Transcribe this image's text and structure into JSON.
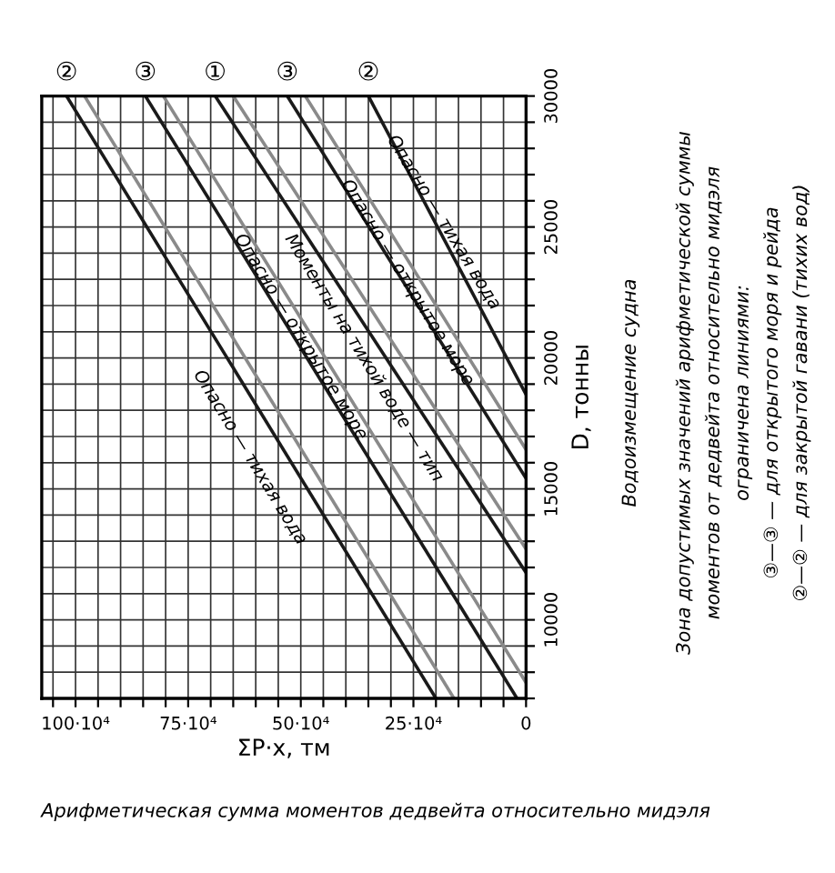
{
  "chart_data": {
    "type": "line",
    "xlabel": "ΣP·x, тм",
    "ylabel": "D, тонны",
    "xlim": [
      1075000,
      0
    ],
    "ylim": [
      7000,
      30000
    ],
    "xticks": [
      {
        "value": 0,
        "label": "0"
      },
      {
        "value": 50000,
        "label": null
      },
      {
        "value": 100000,
        "label": null
      },
      {
        "value": 150000,
        "label": null
      },
      {
        "value": 200000,
        "label": null
      },
      {
        "value": 250000,
        "label": "25·10⁴"
      },
      {
        "value": 300000,
        "label": null
      },
      {
        "value": 350000,
        "label": null
      },
      {
        "value": 400000,
        "label": null
      },
      {
        "value": 450000,
        "label": null
      },
      {
        "value": 500000,
        "label": "50·10⁴"
      },
      {
        "value": 550000,
        "label": null
      },
      {
        "value": 600000,
        "label": null
      },
      {
        "value": 650000,
        "label": null
      },
      {
        "value": 700000,
        "label": null
      },
      {
        "value": 750000,
        "label": "75·10⁴"
      },
      {
        "value": 800000,
        "label": null
      },
      {
        "value": 850000,
        "label": null
      },
      {
        "value": 900000,
        "label": null
      },
      {
        "value": 950000,
        "label": null
      },
      {
        "value": 1000000,
        "label": "100·10⁴"
      },
      {
        "value": 1050000,
        "label": null
      }
    ],
    "yticks": [
      {
        "value": 7000,
        "label": null
      },
      {
        "value": 8000,
        "label": null
      },
      {
        "value": 9000,
        "label": null
      },
      10000,
      {
        "value": 11000,
        "label": null
      },
      {
        "value": 12000,
        "label": null
      },
      {
        "value": 13000,
        "label": null
      },
      {
        "value": 14000,
        "label": null
      },
      15000,
      {
        "value": 16000,
        "label": null
      },
      {
        "value": 17000,
        "label": null
      },
      {
        "value": 18000,
        "label": null
      },
      {
        "value": 19000,
        "label": null
      },
      20000,
      {
        "value": 21000,
        "label": null
      },
      {
        "value": 22000,
        "label": null
      },
      {
        "value": 23000,
        "label": null
      },
      {
        "value": 24000,
        "label": null
      },
      25000,
      {
        "value": 26000,
        "label": null
      },
      {
        "value": 27000,
        "label": null
      },
      {
        "value": 28000,
        "label": null
      },
      {
        "value": 29000,
        "label": null
      },
      30000
    ],
    "grid": true,
    "series": [
      {
        "color": "#1a1a1a",
        "x": [
          1020000,
          200000
        ],
        "values": [
          30000,
          7000
        ]
      },
      {
        "color": "#1a1a1a",
        "x": [
          845000,
          20000
        ],
        "values": [
          30000,
          7000
        ]
      },
      {
        "color": "#1a1a1a",
        "x": [
          690000,
          0
        ],
        "values": [
          30000,
          11800
        ]
      },
      {
        "color": "#1a1a1a",
        "x": [
          530000,
          0
        ],
        "values": [
          30000,
          15400
        ]
      },
      {
        "color": "#1a1a1a",
        "x": [
          350000,
          0
        ],
        "values": [
          30000,
          18600
        ]
      },
      {
        "color": "#8a8a8a",
        "x": [
          980000,
          160000
        ],
        "values": [
          30000,
          7000
        ]
      },
      {
        "color": "#8a8a8a",
        "x": [
          805000,
          0
        ],
        "values": [
          30000,
          7600
        ]
      },
      {
        "color": "#8a8a8a",
        "x": [
          650000,
          0
        ],
        "values": [
          30000,
          12700
        ]
      },
      {
        "color": "#8a8a8a",
        "x": [
          490000,
          0
        ],
        "values": [
          30000,
          16500
        ]
      }
    ],
    "annotations": [
      "Арифметическая сумма моментов дедвейта относительно мидэля",
      "Водоизмещение судна",
      "Зона допустимых значений арифметической суммы",
      "моментов от дедвейта относительно мидэля",
      "ограничена линиями:",
      "③—③ — для открытого моря и рейда",
      "②—② — для закрытой гавани (тихих вод)",
      {
        "text": "②",
        "x": 1020000,
        "y": 30000
      },
      {
        "text": "③",
        "x": 845000,
        "y": 30000
      },
      {
        "text": "①",
        "x": 690000,
        "y": 30000
      },
      {
        "text": "③",
        "x": 530000,
        "y": 30000
      },
      {
        "text": "②",
        "x": 350000,
        "y": 30000
      },
      "Опасно — тихая вода",
      "Опасно — открытое море",
      "Моменты на тихой воде — тип",
      "Опасно — открытое море",
      "Опасно — тихая вода"
    ]
  }
}
